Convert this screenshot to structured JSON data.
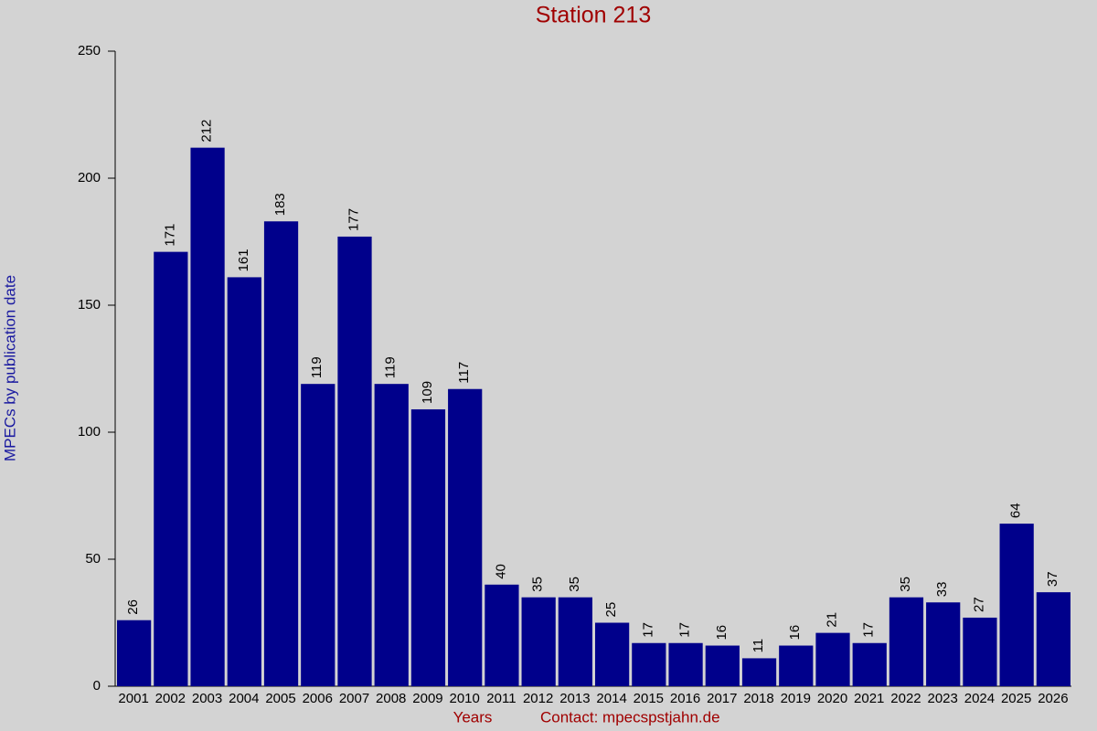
{
  "chart_data": {
    "type": "bar",
    "title": "Station 213",
    "y_label": "MPECs by publication date",
    "x_label": "Years",
    "contact": "Contact: mpecspstjahn.de",
    "categories": [
      "2001",
      "2002",
      "2003",
      "2004",
      "2005",
      "2006",
      "2007",
      "2008",
      "2009",
      "2010",
      "2011",
      "2012",
      "2013",
      "2014",
      "2015",
      "2016",
      "2017",
      "2018",
      "2019",
      "2020",
      "2021",
      "2022",
      "2023",
      "2024",
      "2025",
      "2026"
    ],
    "values": [
      26,
      171,
      212,
      161,
      183,
      119,
      177,
      119,
      109,
      117,
      40,
      35,
      35,
      25,
      17,
      17,
      16,
      11,
      16,
      21,
      17,
      35,
      33,
      27,
      64,
      37
    ],
    "color": "#00008b",
    "ylim": [
      0,
      250
    ],
    "yticks": [
      0,
      50,
      100,
      150,
      200,
      250
    ]
  }
}
